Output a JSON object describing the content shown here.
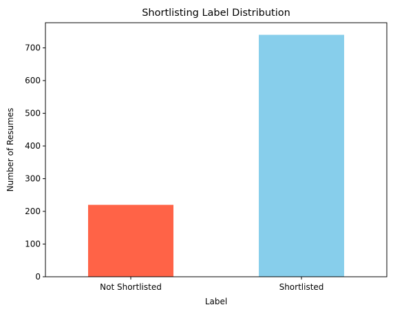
{
  "chart_data": {
    "type": "bar",
    "title": "Shortlisting Label Distribution",
    "xlabel": "Label",
    "ylabel": "Number of Resumes",
    "categories": [
      "Not Shortlisted",
      "Shortlisted"
    ],
    "values": [
      220,
      740
    ],
    "bar_colors": [
      "#ff6347",
      "#87ceeb"
    ],
    "ylim": [
      0,
      777
    ],
    "yticks": [
      0,
      100,
      200,
      300,
      400,
      500,
      600,
      700
    ],
    "grid": false,
    "legend": "none"
  }
}
